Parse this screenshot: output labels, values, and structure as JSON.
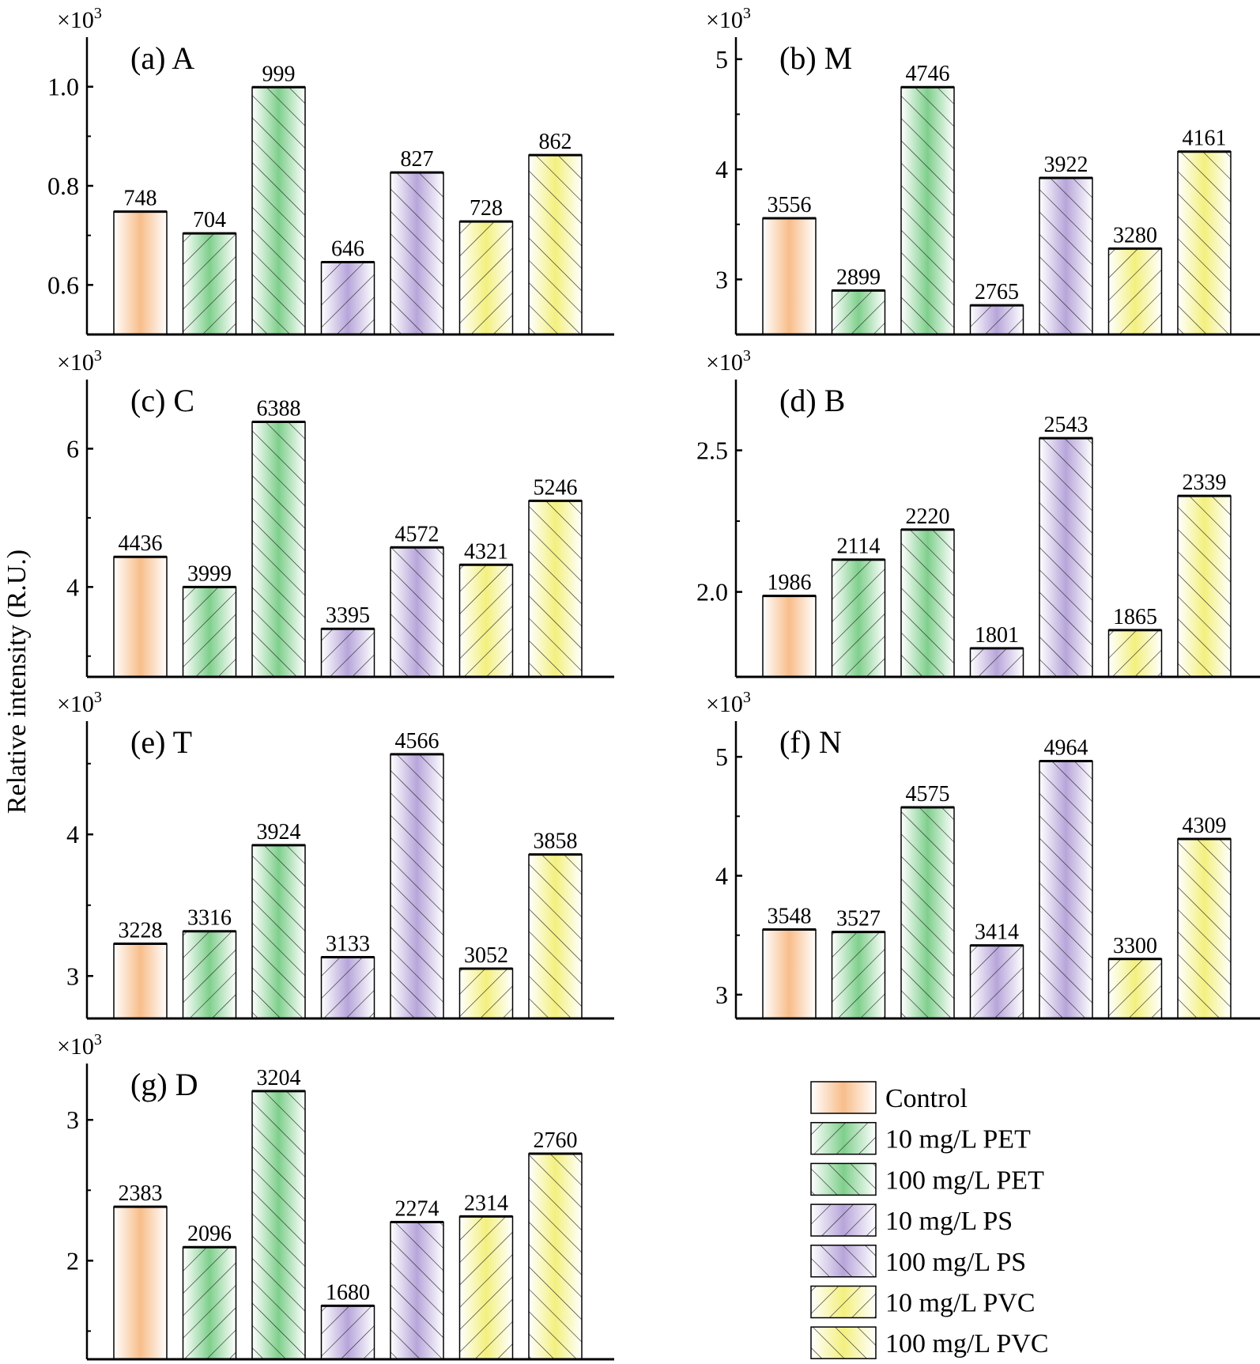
{
  "chart_data": {
    "type": "bar",
    "ylabel": "Relative intensity (R.U.)",
    "multiplier_label": "×10",
    "multiplier_exp": "3",
    "categories": [
      "Control",
      "10 mg/L PET",
      "100 mg/L PET",
      "10 mg/L PS",
      "100 mg/L PS",
      "10 mg/L PVC",
      "100 mg/L PVC"
    ],
    "legend": {
      "placement": "bottom-right",
      "entries": [
        "Control",
        "10 mg/L PET",
        "100 mg/L PET",
        "10 mg/L PS",
        "100 mg/L PS",
        "10 mg/L PVC",
        "100 mg/L PVC"
      ]
    },
    "series_style": [
      {
        "color": "#f8bd8a",
        "hatch": "none"
      },
      {
        "color": "#7fcf8c",
        "hatch": "forward"
      },
      {
        "color": "#7fcf8c",
        "hatch": "back"
      },
      {
        "color": "#b7a5da",
        "hatch": "forward"
      },
      {
        "color": "#b7a5da",
        "hatch": "back"
      },
      {
        "color": "#f3f07f",
        "hatch": "forward"
      },
      {
        "color": "#f3f07f",
        "hatch": "back"
      }
    ],
    "panels": [
      {
        "title": "(a) A",
        "values": [
          748,
          704,
          999,
          646,
          827,
          728,
          862
        ],
        "ylim": [
          500,
          1100
        ],
        "ticks": [
          600,
          800,
          1000
        ],
        "tick_labels": [
          "0.6",
          "0.8",
          "1.0"
        ],
        "minor_ticks": [
          700,
          900
        ]
      },
      {
        "title": "(b) M",
        "values": [
          3556,
          2899,
          4746,
          2765,
          3922,
          3280,
          4161
        ],
        "ylim": [
          2500,
          5200
        ],
        "ticks": [
          3000,
          4000,
          5000
        ],
        "tick_labels": [
          "3",
          "4",
          "5"
        ],
        "minor_ticks": [
          3500,
          4500
        ]
      },
      {
        "title": "(c) C",
        "values": [
          4436,
          3999,
          6388,
          3395,
          4572,
          4321,
          5246
        ],
        "ylim": [
          2700,
          7000
        ],
        "ticks": [
          4000,
          6000
        ],
        "tick_labels": [
          "4",
          "6"
        ],
        "minor_ticks": [
          3000,
          5000
        ]
      },
      {
        "title": "(d) B",
        "values": [
          1986,
          2114,
          2220,
          1801,
          2543,
          1865,
          2339
        ],
        "ylim": [
          1700,
          2750
        ],
        "ticks": [
          2000,
          2500
        ],
        "tick_labels": [
          "2.0",
          "2.5"
        ],
        "minor_ticks": [
          2250
        ]
      },
      {
        "title": "(e) T",
        "values": [
          3228,
          3316,
          3924,
          3133,
          4566,
          3052,
          3858
        ],
        "ylim": [
          2700,
          4800
        ],
        "ticks": [
          3000,
          4000
        ],
        "tick_labels": [
          "3",
          "4"
        ],
        "minor_ticks": [
          3500,
          4500
        ]
      },
      {
        "title": "(f) N",
        "values": [
          3548,
          3527,
          4575,
          3414,
          4964,
          3300,
          4309
        ],
        "ylim": [
          2800,
          5300
        ],
        "ticks": [
          3000,
          4000,
          5000
        ],
        "tick_labels": [
          "3",
          "4",
          "5"
        ],
        "minor_ticks": [
          3500,
          4500
        ]
      },
      {
        "title": "(g) D",
        "values": [
          2383,
          2096,
          3204,
          1680,
          2274,
          2314,
          2760
        ],
        "ylim": [
          1300,
          3400
        ],
        "ticks": [
          2000,
          3000
        ],
        "tick_labels": [
          "2",
          "3"
        ],
        "minor_ticks": [
          1500,
          2500
        ]
      }
    ]
  }
}
